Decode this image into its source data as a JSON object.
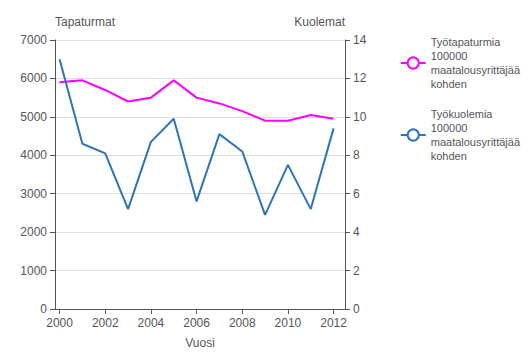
{
  "chart_data": {
    "type": "line",
    "x": [
      2000,
      2001,
      2002,
      2003,
      2004,
      2005,
      2006,
      2007,
      2008,
      2009,
      2010,
      2011,
      2012
    ],
    "xlabel": "Vuosi",
    "ylabel": "Tapaturmat",
    "y2label": "Kuolemat",
    "xlim": [
      1999.8,
      2012.5
    ],
    "xticks": [
      2000,
      2002,
      2004,
      2006,
      2008,
      2010,
      2012
    ],
    "ylim": [
      0,
      7000
    ],
    "yticks": [
      0,
      1000,
      2000,
      3000,
      4000,
      5000,
      6000,
      7000
    ],
    "y2lim": [
      0,
      14
    ],
    "y2ticks": [
      0,
      2,
      4,
      6,
      8,
      10,
      12,
      14
    ],
    "grid": true,
    "legend": "right",
    "series": [
      {
        "name": "Työtapaturmia\n100000\nmaatalousyrittäjää\nkohden",
        "color": "#FF00FF",
        "values": [
          5900,
          5950,
          5700,
          5400,
          5500,
          5950,
          5500,
          5350,
          5150,
          4900,
          4900,
          5050,
          4950
        ]
      },
      {
        "name": "Työkuolemia\n100000\nmaatalousyrittäjää\nkohden",
        "color": "#2E75B6",
        "axis": "y2",
        "values": [
          13.0,
          8.6,
          8.1,
          5.2,
          8.7,
          9.9,
          5.6,
          9.1,
          8.2,
          4.9,
          7.5,
          5.2,
          9.4
        ]
      }
    ]
  }
}
